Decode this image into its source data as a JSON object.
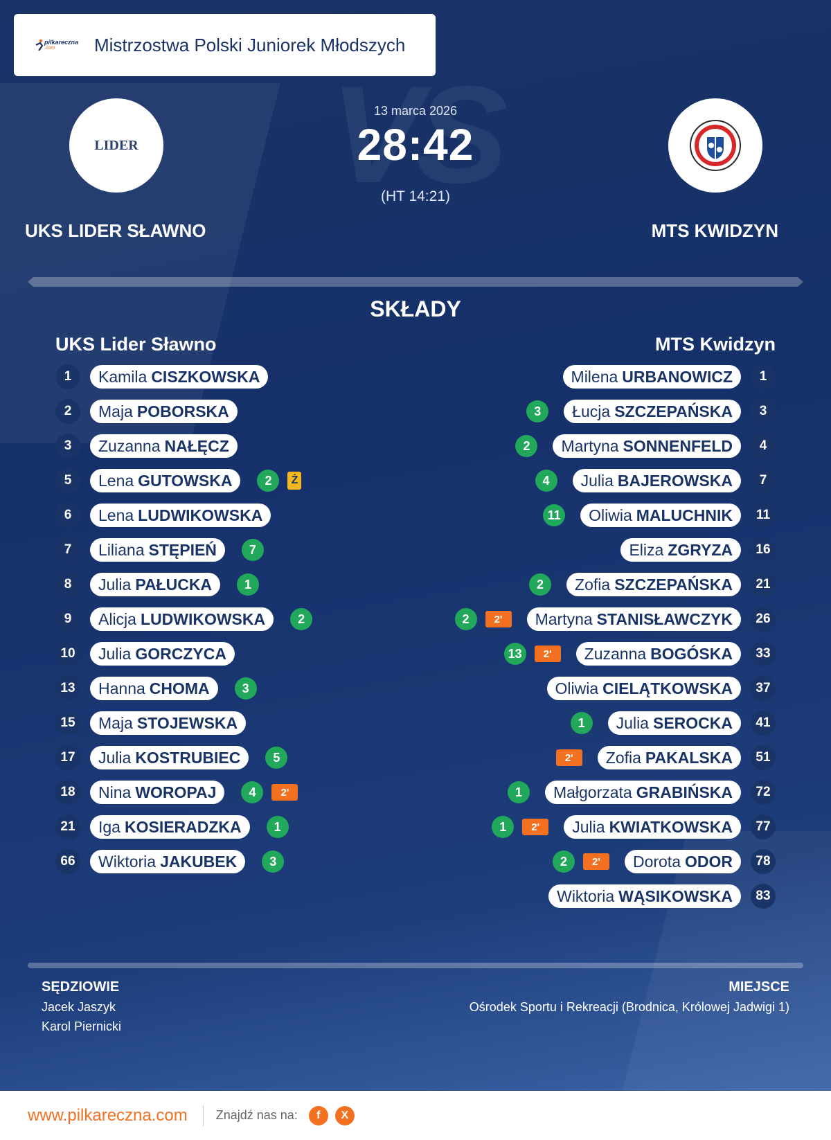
{
  "header": {
    "competition": "Mistrzostwa Polski Juniorek Młodszych",
    "brand_text": "pilkareczna",
    "brand_suffix": ".com"
  },
  "match": {
    "date": "13 marca 2026",
    "score": "28:42",
    "halftime": "(HT 14:21)",
    "watermark": "VS",
    "home_name": "UKS LIDER SŁAWNO",
    "away_name": "MTS KWIDZYN",
    "home_logo_text": "LIDER"
  },
  "lineups": {
    "title": "SKŁADY",
    "home_title": "UKS Lider Sławno",
    "away_title": "MTS Kwidzyn",
    "home": [
      {
        "num": "1",
        "first": "Kamila",
        "last": "CISZKOWSKA",
        "goals": "",
        "card": "",
        "pen": ""
      },
      {
        "num": "2",
        "first": "Maja",
        "last": "POBORSKA",
        "goals": "",
        "card": "",
        "pen": ""
      },
      {
        "num": "3",
        "first": "Zuzanna",
        "last": "NAŁĘCZ",
        "goals": "",
        "card": "",
        "pen": ""
      },
      {
        "num": "5",
        "first": "Lena",
        "last": "GUTOWSKA",
        "goals": "2",
        "card": "Ż",
        "pen": ""
      },
      {
        "num": "6",
        "first": "Lena",
        "last": "LUDWIKOWSKA",
        "goals": "",
        "card": "",
        "pen": ""
      },
      {
        "num": "7",
        "first": "Liliana",
        "last": "STĘPIEŃ",
        "goals": "7",
        "card": "",
        "pen": ""
      },
      {
        "num": "8",
        "first": "Julia",
        "last": "PAŁUCKA",
        "goals": "1",
        "card": "",
        "pen": ""
      },
      {
        "num": "9",
        "first": "Alicja",
        "last": "LUDWIKOWSKA",
        "goals": "2",
        "card": "",
        "pen": ""
      },
      {
        "num": "10",
        "first": "Julia",
        "last": "GORCZYCA",
        "goals": "",
        "card": "",
        "pen": ""
      },
      {
        "num": "13",
        "first": "Hanna",
        "last": "CHOMA",
        "goals": "3",
        "card": "",
        "pen": ""
      },
      {
        "num": "15",
        "first": "Maja",
        "last": "STOJEWSKA",
        "goals": "",
        "card": "",
        "pen": ""
      },
      {
        "num": "17",
        "first": "Julia",
        "last": "KOSTRUBIEC",
        "goals": "5",
        "card": "",
        "pen": ""
      },
      {
        "num": "18",
        "first": "Nina",
        "last": "WOROPAJ",
        "goals": "4",
        "card": "",
        "pen": "2'"
      },
      {
        "num": "21",
        "first": "Iga",
        "last": "KOSIERADZKA",
        "goals": "1",
        "card": "",
        "pen": ""
      },
      {
        "num": "66",
        "first": "Wiktoria",
        "last": "JAKUBEK",
        "goals": "3",
        "card": "",
        "pen": ""
      }
    ],
    "away": [
      {
        "num": "1",
        "first": "Milena",
        "last": "URBANOWICZ",
        "goals": "",
        "pen": ""
      },
      {
        "num": "3",
        "first": "Łucja",
        "last": "SZCZEPAŃSKA",
        "goals": "3",
        "pen": ""
      },
      {
        "num": "4",
        "first": "Martyna",
        "last": "SONNENFELD",
        "goals": "2",
        "pen": ""
      },
      {
        "num": "7",
        "first": "Julia",
        "last": "BAJEROWSKA",
        "goals": "4",
        "pen": ""
      },
      {
        "num": "11",
        "first": "Oliwia",
        "last": "MALUCHNIK",
        "goals": "11",
        "pen": ""
      },
      {
        "num": "16",
        "first": "Eliza",
        "last": "ZGRYZA",
        "goals": "",
        "pen": ""
      },
      {
        "num": "21",
        "first": "Zofia",
        "last": "SZCZEPAŃSKA",
        "goals": "2",
        "pen": ""
      },
      {
        "num": "26",
        "first": "Martyna",
        "last": "STANISŁAWCZYK",
        "goals": "2",
        "pen": "2'"
      },
      {
        "num": "33",
        "first": "Zuzanna",
        "last": "BOGÓSKA",
        "goals": "13",
        "pen": "2'"
      },
      {
        "num": "37",
        "first": "Oliwia",
        "last": "CIELĄTKOWSKA",
        "goals": "",
        "pen": ""
      },
      {
        "num": "41",
        "first": "Julia",
        "last": "SEROCKA",
        "goals": "1",
        "pen": ""
      },
      {
        "num": "51",
        "first": "Zofia",
        "last": "PAKALSKA",
        "goals": "",
        "pen": "2'"
      },
      {
        "num": "72",
        "first": "Małgorzata",
        "last": "GRABIŃSKA",
        "goals": "1",
        "pen": ""
      },
      {
        "num": "77",
        "first": "Julia",
        "last": "KWIATKOWSKA",
        "goals": "1",
        "pen": "2'"
      },
      {
        "num": "78",
        "first": "Dorota",
        "last": "ODOR",
        "goals": "2",
        "pen": "2'"
      },
      {
        "num": "83",
        "first": "Wiktoria",
        "last": "WĄSIKOWSKA",
        "goals": "",
        "pen": ""
      }
    ]
  },
  "officials": {
    "label": "SĘDZIOWIE",
    "names": [
      "Jacek Jaszyk",
      "Karol Piernicki"
    ]
  },
  "venue": {
    "label": "MIEJSCE",
    "text": "Ośrodek Sportu i Rekreacji (Brodnica, Królowej Jadwigi 1)"
  },
  "footer": {
    "url": "www.pilkareczna.com",
    "find_us": "Znajdź nas na:",
    "social": [
      {
        "icon": "facebook-icon",
        "glyph": "f"
      },
      {
        "icon": "x-icon",
        "glyph": "X"
      }
    ]
  },
  "colors": {
    "background": "#16306a",
    "accent": "#f37021",
    "goal": "#21a85b",
    "yellow_card": "#f5b81c",
    "number_badge": "#1b3468"
  }
}
